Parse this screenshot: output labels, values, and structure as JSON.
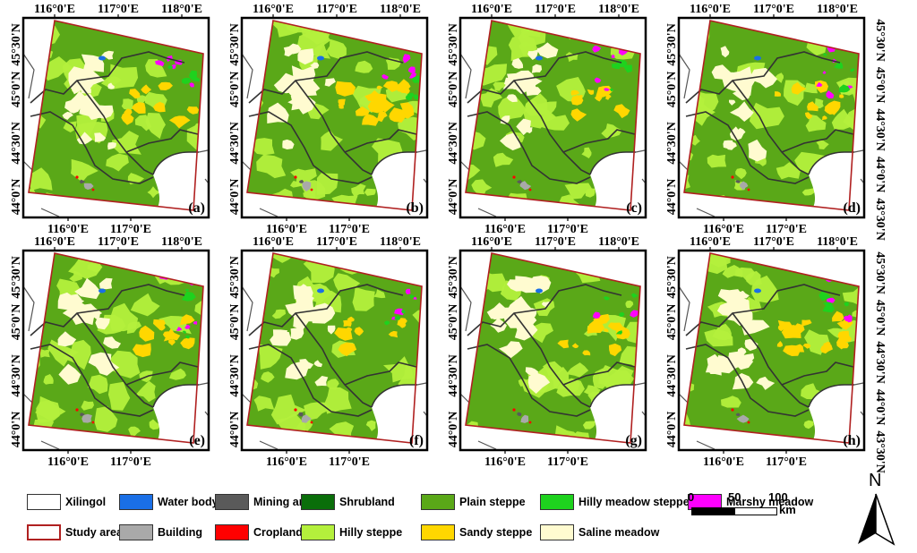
{
  "figure": {
    "panels": [
      {
        "label": "(a)",
        "top_ticks": [
          "116°0'E",
          "117°0'E",
          "118°0'E"
        ],
        "bottom_ticks": [
          "116°0'E",
          "117°0'E"
        ],
        "left_ticks": [
          "45°30'N",
          "45°0'N",
          "44°30'N",
          "44°0'N"
        ],
        "right_ticks": []
      },
      {
        "label": "(b)",
        "top_ticks": [
          "116°0'E",
          "117°0'E",
          "118°0'E"
        ],
        "bottom_ticks": [
          "116°0'E",
          "117°0'E"
        ],
        "left_ticks": [
          "45°30'N",
          "45°0'N",
          "44°30'N",
          "44°0'N"
        ],
        "right_ticks": []
      },
      {
        "label": "(c)",
        "top_ticks": [
          "116°0'E",
          "117°0'E",
          "118°0'E"
        ],
        "bottom_ticks": [
          "116°0'E",
          "117°0'E"
        ],
        "left_ticks": [
          "45°30'N",
          "45°0'N",
          "44°30'N",
          "44°0'N"
        ],
        "right_ticks": []
      },
      {
        "label": "(d)",
        "top_ticks": [
          "116°0'E",
          "117°0'E",
          "118°0'E"
        ],
        "bottom_ticks": [
          "116°0'E",
          "117°0'E"
        ],
        "left_ticks": [
          "45°30'N",
          "45°0'N",
          "44°30'N",
          "44°0'N"
        ],
        "right_ticks": [
          "45°30'N",
          "45°0'N",
          "44°30'N",
          "44°0'N",
          "43°30'N"
        ]
      },
      {
        "label": "(e)",
        "top_ticks": [
          "116°0'E",
          "117°0'E",
          "118°0'E"
        ],
        "bottom_ticks": [
          "116°0'E",
          "117°0'E"
        ],
        "left_ticks": [
          "45°30'N",
          "45°0'N",
          "44°30'N",
          "44°0'N"
        ],
        "right_ticks": []
      },
      {
        "label": "(f)",
        "top_ticks": [
          "116°0'E",
          "117°0'E",
          "118°0'E"
        ],
        "bottom_ticks": [
          "116°0'E",
          "117°0'E"
        ],
        "left_ticks": [
          "45°30'N",
          "45°0'N",
          "44°30'N",
          "44°0'N"
        ],
        "right_ticks": []
      },
      {
        "label": "(g)",
        "top_ticks": [
          "116°0'E",
          "117°0'E",
          "118°0'E"
        ],
        "bottom_ticks": [
          "116°0'E",
          "117°0'E"
        ],
        "left_ticks": [
          "45°30'N",
          "45°0'N",
          "44°30'N",
          "44°0'N"
        ],
        "right_ticks": []
      },
      {
        "label": "(h)",
        "top_ticks": [
          "116°0'E",
          "117°0'E",
          "118°0'E"
        ],
        "bottom_ticks": [
          "116°0'E",
          "117°0'E"
        ],
        "left_ticks": [
          "45°30'N",
          "45°0'N",
          "44°30'N",
          "44°0'N"
        ],
        "right_ticks": [
          "45°30'N",
          "45°0'N",
          "44°30'N",
          "44°0'N",
          "43°30'N"
        ]
      }
    ]
  },
  "legend": {
    "items": [
      {
        "key": "xilingol",
        "label": "Xilingol",
        "swatch": "#ffffff",
        "border": "#333333"
      },
      {
        "key": "water",
        "label": "Water body",
        "swatch": "#1a6fe6",
        "border": "#333333"
      },
      {
        "key": "mining",
        "label": "Mining area",
        "swatch": "#5a5a5a",
        "border": "#333333"
      },
      {
        "key": "shrub",
        "label": "Shrubland",
        "swatch": "#0a6e0a",
        "border": "#333333"
      },
      {
        "key": "plain",
        "label": "Plain steppe",
        "swatch": "#5aa818",
        "border": "#333333"
      },
      {
        "key": "hillymeadow",
        "label": "Hilly meadow steppe",
        "swatch": "#1ed21e",
        "border": "#333333"
      },
      {
        "key": "marshy",
        "label": "Marshy meadow",
        "swatch": "#ff00ff",
        "border": "#333333"
      },
      {
        "key": "study",
        "label": "Study area",
        "swatch": "#ffffff",
        "border": "#b02020"
      },
      {
        "key": "building",
        "label": "Building",
        "swatch": "#a9a9a9",
        "border": "#333333"
      },
      {
        "key": "crop",
        "label": "Cropland",
        "swatch": "#ff0000",
        "border": "#333333"
      },
      {
        "key": "hilly",
        "label": "Hilly steppe",
        "swatch": "#b4f03c",
        "border": "#333333"
      },
      {
        "key": "sandy",
        "label": "Sandy steppe",
        "swatch": "#ffd700",
        "border": "#333333"
      },
      {
        "key": "saline",
        "label": "Saline meadow",
        "swatch": "#fffbd0",
        "border": "#333333"
      }
    ]
  },
  "scale_bar": {
    "ticks": [
      "0",
      "50",
      "100"
    ],
    "unit": "km"
  },
  "north_arrow": {
    "label": "N"
  }
}
